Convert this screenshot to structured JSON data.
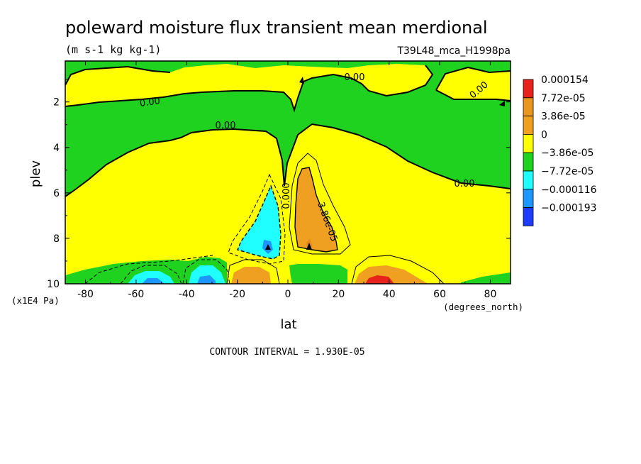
{
  "chart_data": {
    "type": "contour",
    "title": "poleward moisture flux transient mean merdional",
    "units": "(m s-1 kg kg-1)",
    "run_label": "T39L48_mca_H1998pa",
    "xlabel": "lat",
    "x_unit": "(degrees_north)",
    "ylabel": "plev",
    "y_unit": "(x1E4 Pa)",
    "x_ticks": [
      "-80",
      "-60",
      "-40",
      "-20",
      "0",
      "20",
      "40",
      "60",
      "80"
    ],
    "y_ticks": [
      "2",
      "4",
      "6",
      "8",
      "10"
    ],
    "xlim": [
      -88,
      88
    ],
    "ylim": [
      0.2,
      10
    ],
    "y_reversed": true,
    "contour_interval_text": "CONTOUR INTERVAL = 1.930E-05",
    "contour_labels": [
      "0.00",
      "0.00",
      "0.00",
      "0.00",
      "0.00",
      "0.00",
      "0.000",
      "3.86e-05"
    ],
    "legend": {
      "placement": "right",
      "levels": [
        {
          "label": "0.000154",
          "color": "#e8231c"
        },
        {
          "label": "7.72e-05",
          "color": "#e8961e"
        },
        {
          "label": "3.86e-05",
          "color": "#f0a020"
        },
        {
          "label": "0",
          "color": "#ffff00"
        },
        {
          "label": "−3.86e-05",
          "color": "#1fd21f"
        },
        {
          "label": "−7.72e-05",
          "color": "#1fffff"
        },
        {
          "label": "−0.000116",
          "color": "#1e96ff"
        },
        {
          "label": "−0.000193",
          "color": "#1e3cff"
        }
      ]
    },
    "fill_colors": {
      "positive_weak": "#ffff00",
      "negative_weak": "#1fd21f",
      "positive_mid": "#f0a020",
      "positive_strong": "#e88a1c",
      "positive_max": "#e8231c",
      "negative_mid": "#1fffff",
      "negative_strong": "#1e96ff"
    }
  }
}
